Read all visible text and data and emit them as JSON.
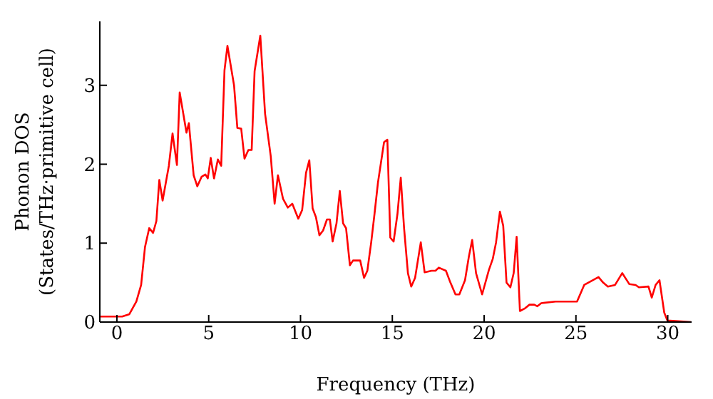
{
  "chart_data": {
    "type": "line",
    "xlabel": "Frequency (THz)",
    "ylabel": "Phonon DOS\n(States/THz·primitive cell)",
    "x": [
      -0.93,
      0.29,
      0.68,
      1.06,
      1.32,
      1.53,
      1.76,
      1.97,
      2.15,
      2.31,
      2.49,
      2.83,
      3.03,
      3.27,
      3.42,
      3.79,
      3.92,
      4.18,
      4.38,
      4.61,
      4.82,
      4.95,
      5.11,
      5.29,
      5.5,
      5.68,
      5.86,
      6.02,
      6.38,
      6.56,
      6.77,
      6.95,
      7.16,
      7.34,
      7.5,
      7.81,
      8.07,
      8.38,
      8.59,
      8.77,
      9.05,
      9.31,
      9.55,
      9.88,
      10.09,
      10.3,
      10.48,
      10.66,
      10.84,
      11.03,
      11.23,
      11.44,
      11.6,
      11.75,
      11.96,
      12.14,
      12.32,
      12.48,
      12.69,
      12.86,
      13.25,
      13.46,
      13.64,
      13.85,
      14.03,
      14.22,
      14.55,
      14.73,
      14.89,
      15.07,
      15.28,
      15.46,
      15.64,
      15.85,
      16.03,
      16.24,
      16.55,
      16.76,
      17.14,
      17.35,
      17.53,
      17.92,
      18.13,
      18.44,
      18.65,
      18.96,
      19.17,
      19.35,
      19.56,
      19.89,
      20.26,
      20.47,
      20.65,
      20.86,
      21.04,
      21.22,
      21.43,
      21.61,
      21.77,
      21.95,
      22.2,
      22.47,
      22.73,
      22.9,
      23.11,
      23.89,
      25.06,
      25.45,
      25.84,
      26.23,
      26.48,
      26.74,
      27.13,
      27.52,
      27.91,
      28.25,
      28.43,
      28.95,
      29.13,
      29.34,
      29.55,
      29.81,
      29.98,
      31.28
    ],
    "series": [
      {
        "color": "#ff0000",
        "values": [
          0.07,
          0.07,
          0.1,
          0.26,
          0.47,
          0.95,
          1.19,
          1.13,
          1.28,
          1.8,
          1.54,
          1.98,
          2.39,
          1.99,
          2.91,
          2.4,
          2.52,
          1.86,
          1.72,
          1.84,
          1.87,
          1.82,
          2.08,
          1.82,
          2.06,
          1.98,
          3.19,
          3.5,
          3.0,
          2.46,
          2.45,
          2.07,
          2.18,
          2.18,
          3.18,
          3.63,
          2.64,
          2.1,
          1.5,
          1.86,
          1.56,
          1.45,
          1.5,
          1.31,
          1.42,
          1.89,
          2.05,
          1.44,
          1.33,
          1.1,
          1.16,
          1.3,
          1.3,
          1.02,
          1.25,
          1.66,
          1.25,
          1.19,
          0.72,
          0.78,
          0.78,
          0.56,
          0.65,
          1.01,
          1.37,
          1.77,
          2.28,
          2.31,
          1.07,
          1.02,
          1.37,
          1.83,
          1.19,
          0.62,
          0.45,
          0.56,
          1.01,
          0.63,
          0.65,
          0.65,
          0.69,
          0.65,
          0.52,
          0.35,
          0.35,
          0.53,
          0.83,
          1.04,
          0.62,
          0.35,
          0.66,
          0.8,
          1.01,
          1.4,
          1.22,
          0.5,
          0.44,
          0.62,
          1.08,
          0.14,
          0.17,
          0.22,
          0.22,
          0.2,
          0.24,
          0.26,
          0.26,
          0.47,
          0.52,
          0.57,
          0.5,
          0.45,
          0.47,
          0.62,
          0.48,
          0.47,
          0.44,
          0.45,
          0.31,
          0.47,
          0.53,
          0.12,
          0.02,
          0.0
        ]
      }
    ],
    "xlim": [
      -0.93,
      31.3
    ],
    "ylim": [
      0,
      3.81
    ],
    "xticks": [
      0,
      5,
      10,
      15,
      20,
      25,
      30
    ],
    "yticks": [
      0,
      1,
      2,
      3
    ],
    "grid": false,
    "legend": false,
    "marker": "none",
    "line_style": "solid"
  }
}
